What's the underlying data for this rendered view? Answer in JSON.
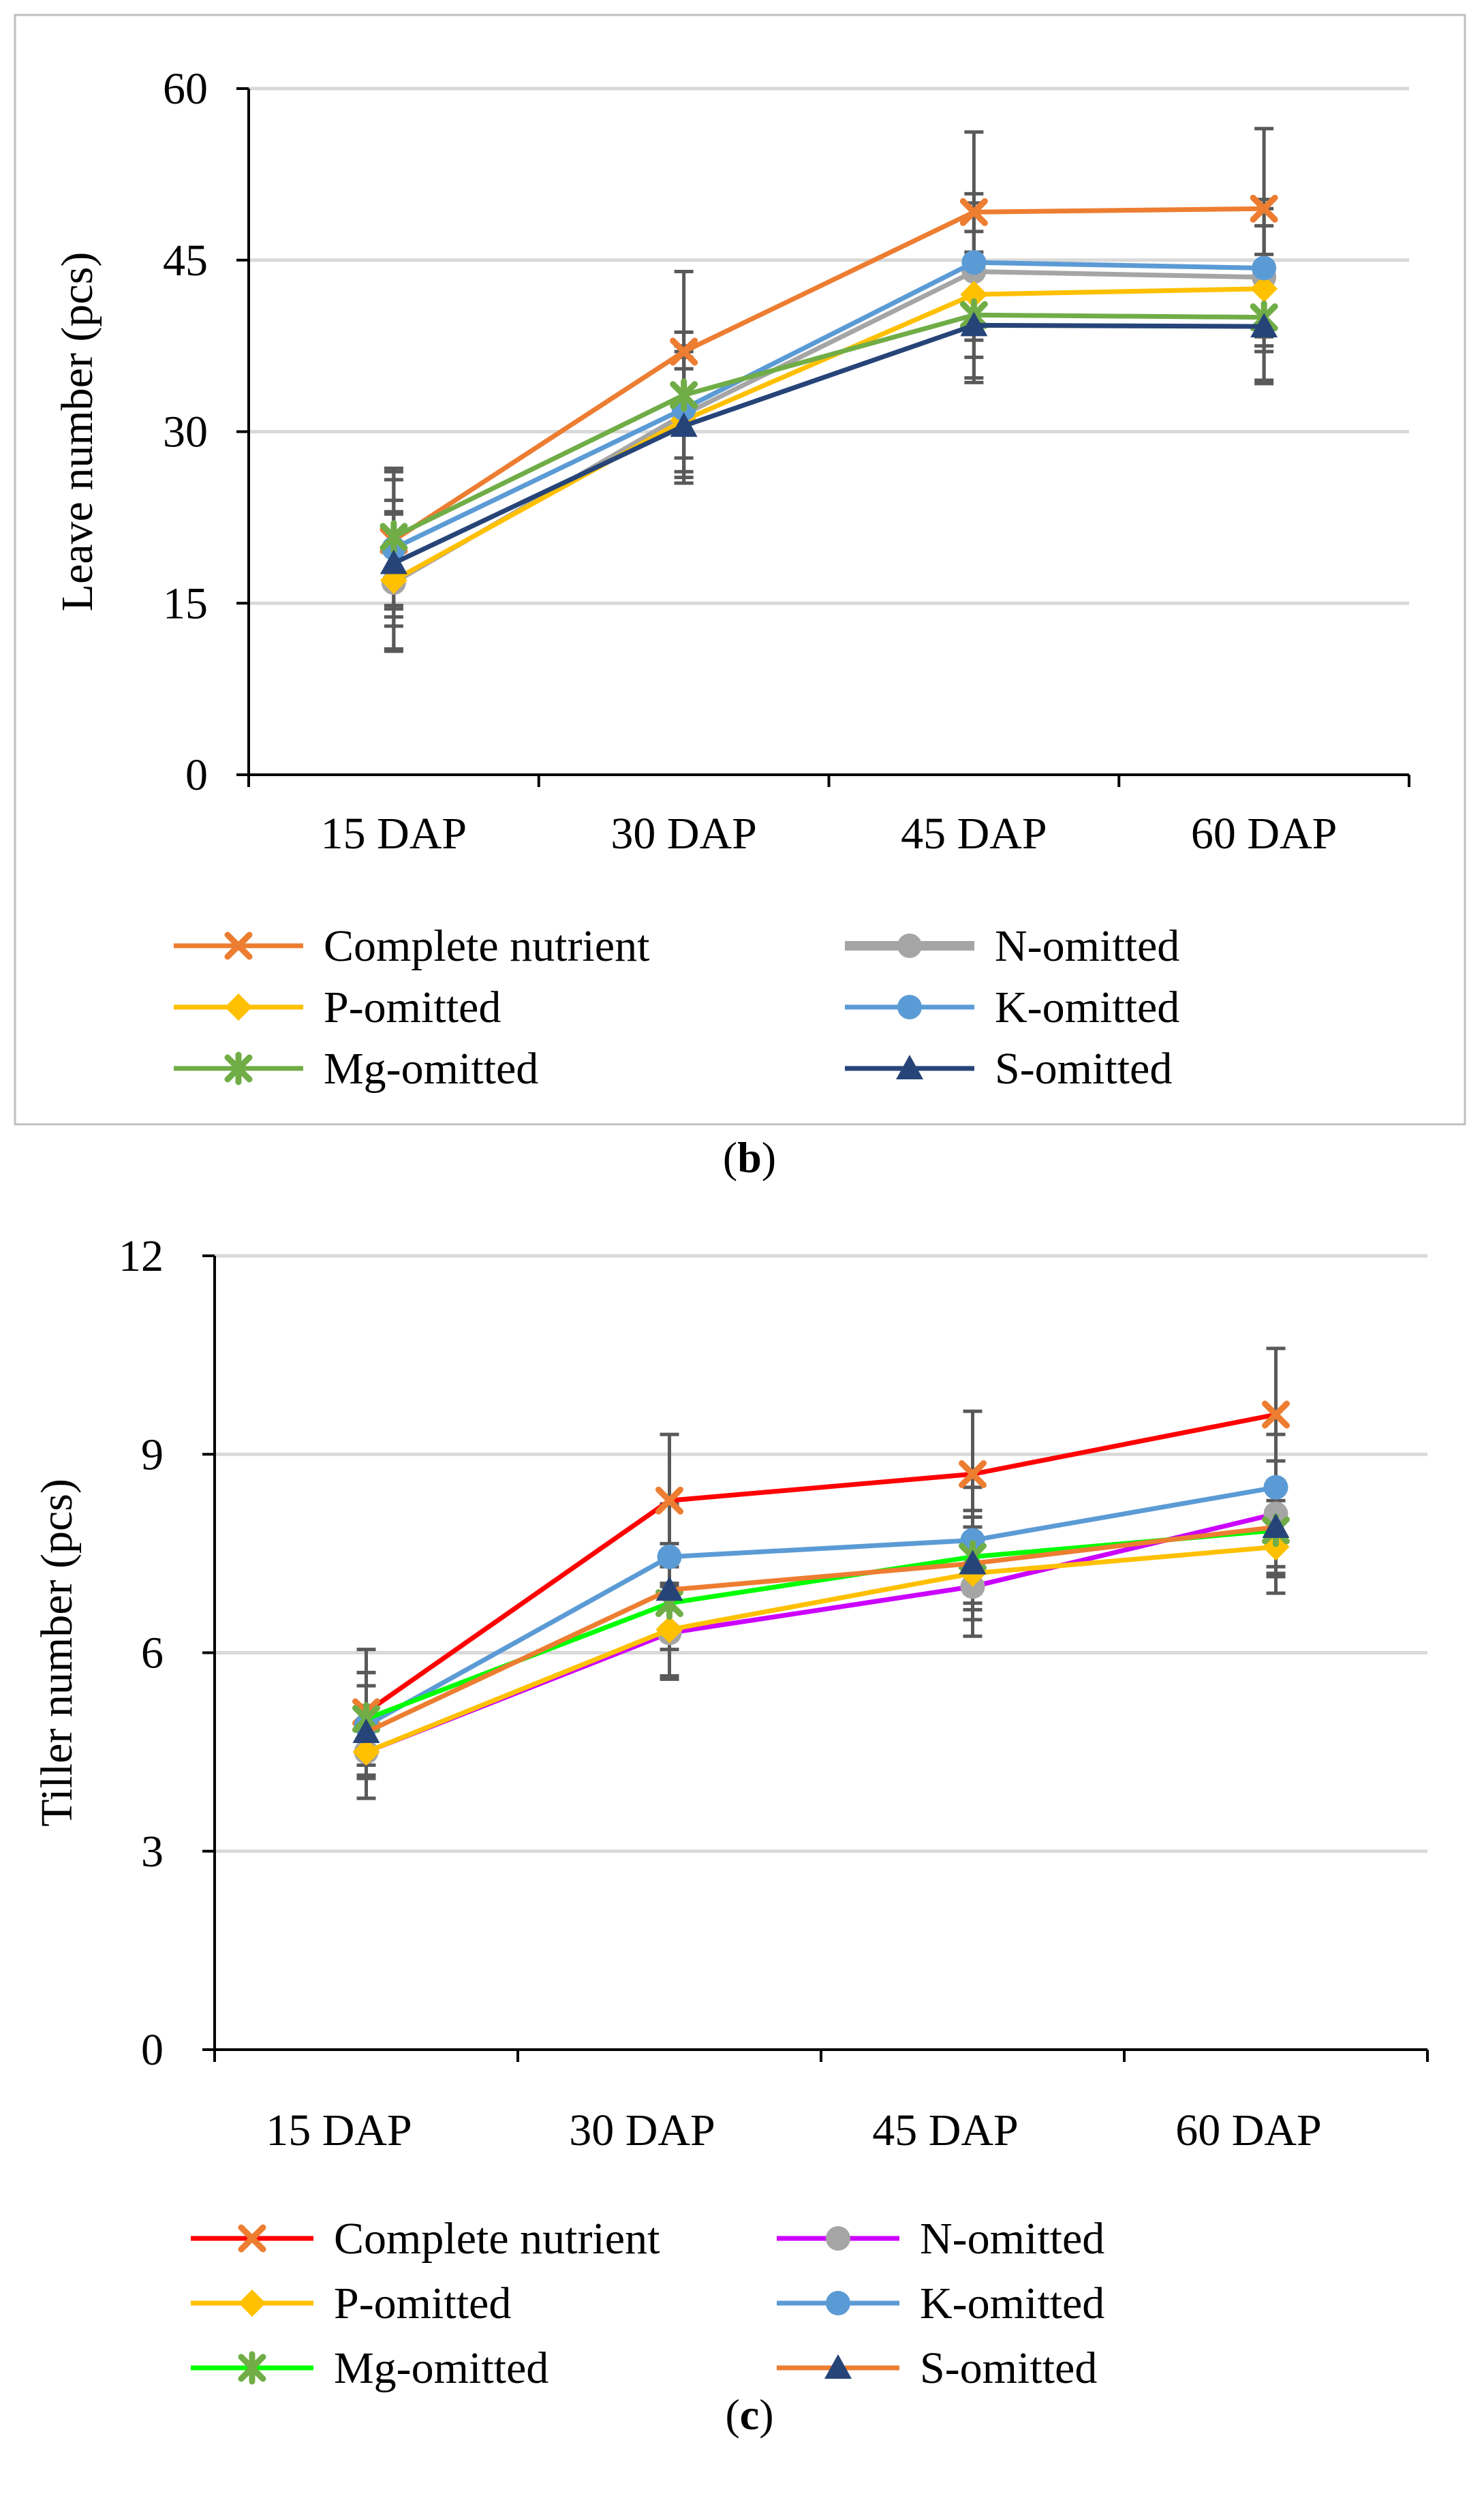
{
  "chart_data": [
    {
      "type": "line",
      "panel_caption_prefix": "(",
      "panel_caption_letter": "b",
      "panel_caption_suffix": ")",
      "title": "",
      "xlabel": "",
      "ylabel": "Leave number (pcs)",
      "categories": [
        "15 DAP",
        "30 DAP",
        "45 DAP",
        "60 DAP"
      ],
      "ylim": [
        0,
        60
      ],
      "yticks": [
        0,
        15,
        30,
        45,
        60
      ],
      "grid": true,
      "legend_position": "bottom",
      "series": [
        {
          "name": "Complete nutrient",
          "color": "#ED7D31",
          "marker": "x",
          "values": [
            20.5,
            37.0,
            49.2,
            49.5
          ],
          "errors": [
            6.0,
            7.0,
            7.0,
            7.0
          ]
        },
        {
          "name": "N-omitted",
          "color": "#A5A5A5",
          "marker": "circle",
          "values": [
            16.8,
            31.5,
            44.0,
            43.5
          ],
          "errors": [
            6.0,
            5.5,
            6.0,
            6.0
          ]
        },
        {
          "name": "P-omitted",
          "color": "#FFC000",
          "marker": "diamond",
          "values": [
            17.0,
            31.0,
            42.0,
            42.5
          ],
          "errors": [
            6.0,
            5.5,
            5.5,
            5.5
          ]
        },
        {
          "name": "K-omitted",
          "color": "#5B9BD5",
          "marker": "circle",
          "values": [
            19.8,
            32.0,
            44.8,
            44.3
          ],
          "errors": [
            6.0,
            5.5,
            6.0,
            6.0
          ]
        },
        {
          "name": "Mg-omitted",
          "color": "#70AD47",
          "marker": "star",
          "values": [
            20.8,
            33.2,
            40.2,
            40.0
          ],
          "errors": [
            6.0,
            5.5,
            5.5,
            5.5
          ]
        },
        {
          "name": "S-omitted",
          "color": "#264478",
          "marker": "triangle",
          "values": [
            18.5,
            30.5,
            39.3,
            39.2
          ],
          "errors": [
            5.5,
            5.0,
            5.0,
            5.0
          ]
        }
      ]
    },
    {
      "type": "line",
      "panel_caption_prefix": "(",
      "panel_caption_letter": "c",
      "panel_caption_suffix": ")",
      "title": "",
      "xlabel": "",
      "ylabel": "Tiller number (pcs)",
      "categories": [
        "15 DAP",
        "30 DAP",
        "45 DAP",
        "60 DAP"
      ],
      "ylim": [
        0,
        12
      ],
      "yticks": [
        0,
        3,
        6,
        9,
        12
      ],
      "grid": true,
      "legend_position": "bottom",
      "series": [
        {
          "name": "Complete nutrient",
          "color": "#FF0000",
          "marker": "x",
          "marker_color": "#ED7D31",
          "values": [
            5.1,
            8.3,
            8.7,
            9.6
          ],
          "errors": [
            0.95,
            1.0,
            0.95,
            1.0
          ]
        },
        {
          "name": "N-omitted",
          "color": "#CC00FF",
          "marker": "circle",
          "marker_color": "#A5A5A5",
          "values": [
            4.5,
            6.3,
            7.0,
            8.1
          ],
          "errors": [
            0.7,
            0.7,
            0.75,
            0.8
          ]
        },
        {
          "name": "P-omitted",
          "color": "#FFC000",
          "marker": "diamond",
          "marker_color": "#FFC000",
          "values": [
            4.5,
            6.35,
            7.2,
            7.6
          ],
          "errors": [
            0.7,
            0.7,
            0.7,
            0.7
          ]
        },
        {
          "name": "K-omitted",
          "color": "#5B9BD5",
          "marker": "circle",
          "marker_color": "#5B9BD5",
          "values": [
            4.9,
            7.45,
            7.7,
            8.5
          ],
          "errors": [
            0.8,
            0.8,
            0.8,
            0.8
          ]
        },
        {
          "name": "Mg-omitted",
          "color": "#00FF00",
          "marker": "star",
          "marker_color": "#70AD47",
          "values": [
            5.0,
            6.75,
            7.45,
            7.85
          ],
          "errors": [
            0.7,
            0.7,
            0.7,
            0.7
          ]
        },
        {
          "name": "S-omitted",
          "color": "#ED7D31",
          "marker": "triangle",
          "marker_color": "#264478",
          "values": [
            4.8,
            6.95,
            7.35,
            7.9
          ],
          "errors": [
            0.7,
            0.7,
            0.7,
            0.7
          ]
        }
      ]
    }
  ]
}
